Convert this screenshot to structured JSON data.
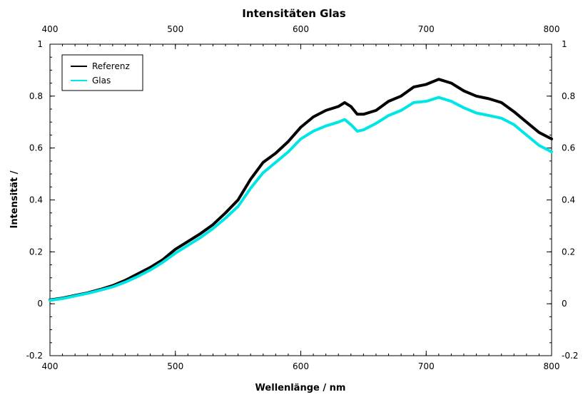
{
  "chart_data": {
    "type": "line",
    "title": "Intensitäten Glas",
    "xlabel": "Wellenlänge / nm",
    "ylabel": "Intensität /",
    "xlim": [
      400,
      800
    ],
    "ylim": [
      -0.2,
      1
    ],
    "x_ticks": [
      400,
      500,
      600,
      700,
      800
    ],
    "y_ticks": [
      -0.2,
      0,
      0.2,
      0.4,
      0.6,
      0.8,
      1
    ],
    "x_tick_labels": [
      "400",
      "500",
      "600",
      "700",
      "800"
    ],
    "y_tick_labels": [
      "-0.2",
      "0",
      "0.2",
      "0.4",
      "0.6",
      "0.8",
      "1"
    ],
    "grid": false,
    "legend_position": "top-left",
    "x": [
      400,
      410,
      420,
      430,
      440,
      450,
      460,
      470,
      480,
      490,
      500,
      510,
      520,
      530,
      540,
      550,
      560,
      570,
      580,
      590,
      600,
      610,
      620,
      630,
      635,
      640,
      645,
      650,
      660,
      670,
      680,
      690,
      700,
      710,
      720,
      730,
      740,
      750,
      760,
      770,
      780,
      790,
      800
    ],
    "series": [
      {
        "name": "Referenz",
        "color": "#000000",
        "values": [
          0.015,
          0.022,
          0.032,
          0.042,
          0.055,
          0.07,
          0.09,
          0.115,
          0.14,
          0.17,
          0.21,
          0.24,
          0.27,
          0.305,
          0.35,
          0.4,
          0.48,
          0.545,
          0.58,
          0.625,
          0.68,
          0.72,
          0.745,
          0.76,
          0.775,
          0.76,
          0.73,
          0.73,
          0.745,
          0.78,
          0.8,
          0.835,
          0.845,
          0.865,
          0.85,
          0.82,
          0.8,
          0.79,
          0.775,
          0.74,
          0.7,
          0.66,
          0.635
        ]
      },
      {
        "name": "Glas",
        "color": "#00e5e5",
        "values": [
          0.013,
          0.02,
          0.03,
          0.04,
          0.052,
          0.065,
          0.083,
          0.105,
          0.13,
          0.16,
          0.195,
          0.225,
          0.255,
          0.29,
          0.33,
          0.375,
          0.445,
          0.505,
          0.545,
          0.585,
          0.635,
          0.665,
          0.685,
          0.7,
          0.71,
          0.69,
          0.665,
          0.67,
          0.695,
          0.725,
          0.745,
          0.775,
          0.78,
          0.795,
          0.78,
          0.755,
          0.735,
          0.725,
          0.715,
          0.69,
          0.65,
          0.61,
          0.585
        ]
      }
    ]
  }
}
